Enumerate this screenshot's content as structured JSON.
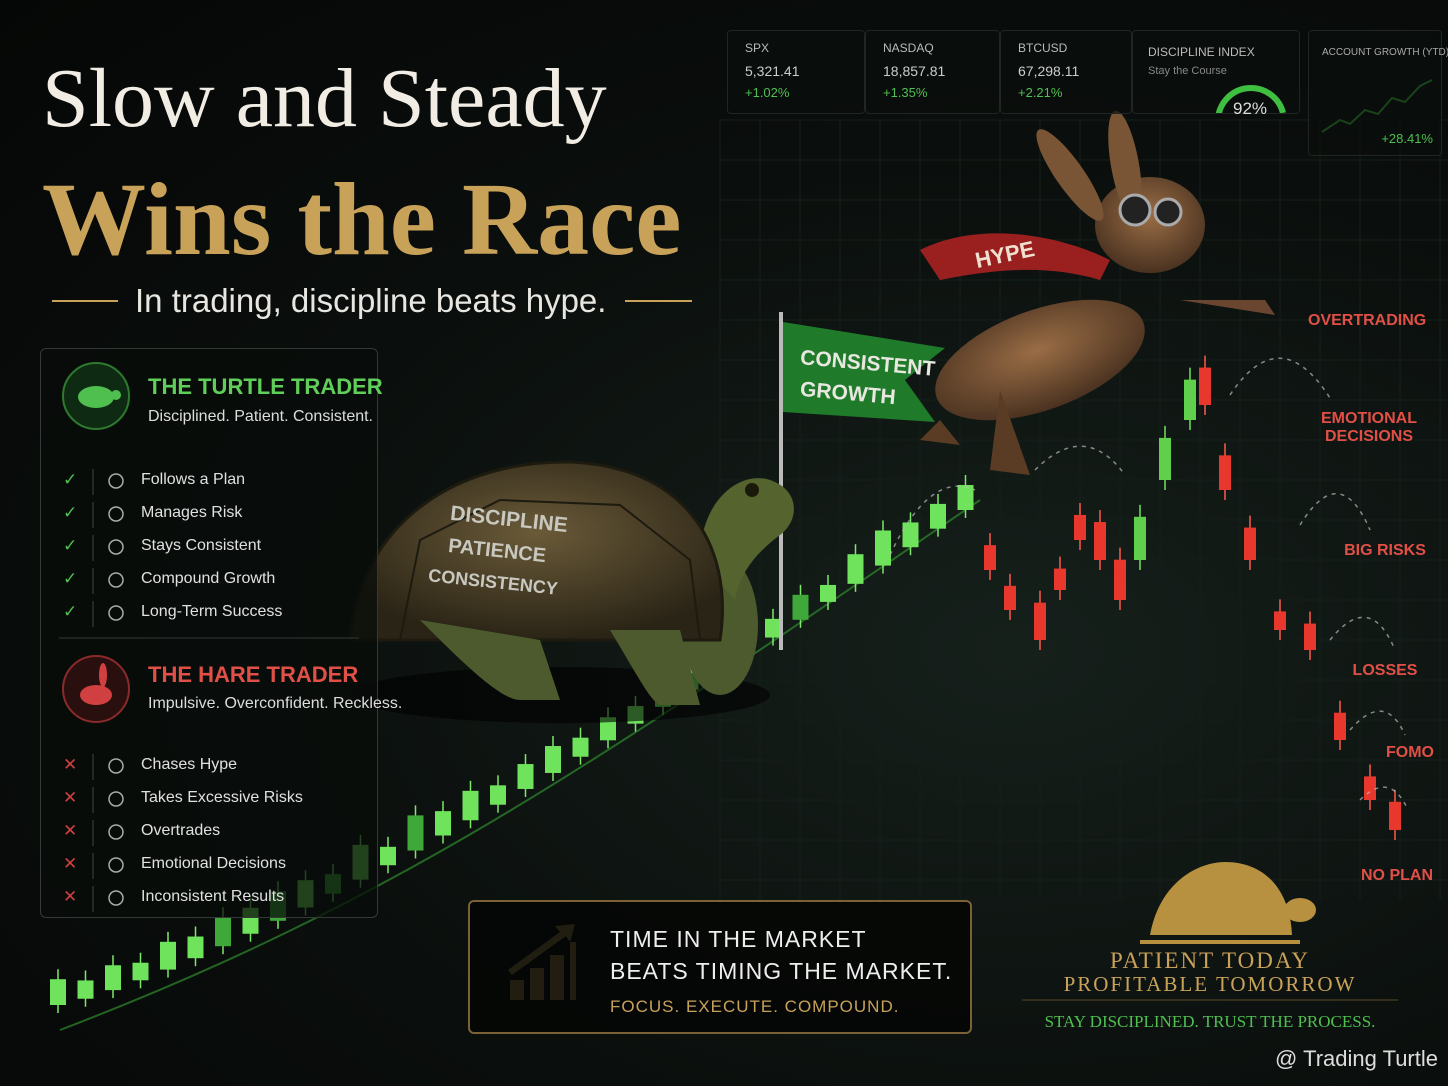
{
  "title": {
    "line1": "Slow and Steady",
    "line2": "Wins the Race"
  },
  "subtitle": "In trading, discipline beats hype.",
  "tickers": [
    {
      "name": "SPX",
      "price": "5,321.41",
      "change": "+1.02%"
    },
    {
      "name": "NASDAQ",
      "price": "18,857.81",
      "change": "+1.35%"
    },
    {
      "name": "BTCUSD",
      "price": "67,298.11",
      "change": "+2.21%"
    }
  ],
  "discipline": {
    "name": "DISCIPLINE INDEX",
    "sub": "Stay the Course",
    "value": 92,
    "value_label": "92%"
  },
  "account": {
    "name": "ACCOUNT GROWTH (YTD)",
    "value": "+28.41%"
  },
  "turtle_panel": {
    "title": "THE TURTLE TRADER",
    "tagline": "Disciplined. Patient. Consistent.",
    "items": [
      "Follows a Plan",
      "Manages Risk",
      "Stays Consistent",
      "Compound Growth",
      "Long-Term Success"
    ]
  },
  "hare_panel": {
    "title": "THE HARE TRADER",
    "tagline": "Impulsive. Overconfident. Reckless.",
    "items": [
      "Chases Hype",
      "Takes Excessive Risks",
      "Overtrades",
      "Emotional Decisions",
      "Inconsistent Results"
    ]
  },
  "flag": {
    "line1": "CONSISTENT",
    "line2": "GROWTH"
  },
  "shell": [
    "DISCIPLINE",
    "PATIENCE",
    "CONSISTENCY"
  ],
  "scarf": "HYPE",
  "risks": [
    "OVERTRADING",
    "EMOTIONAL DECISIONS",
    "BIG RISKS",
    "LOSSES",
    "FOMO",
    "NO PLAN"
  ],
  "callout": {
    "line1": "TIME IN THE MARKET",
    "line2": "BEATS TIMING THE MARKET.",
    "line3": "FOCUS. EXECUTE. COMPOUND."
  },
  "brand": {
    "line1": "PATIENT TODAY",
    "line2": "PROFITABLE TOMORROW",
    "tagline": "STAY DISCIPLINED. TRUST THE PROCESS."
  },
  "watermark": "@ Trading Turtle"
}
